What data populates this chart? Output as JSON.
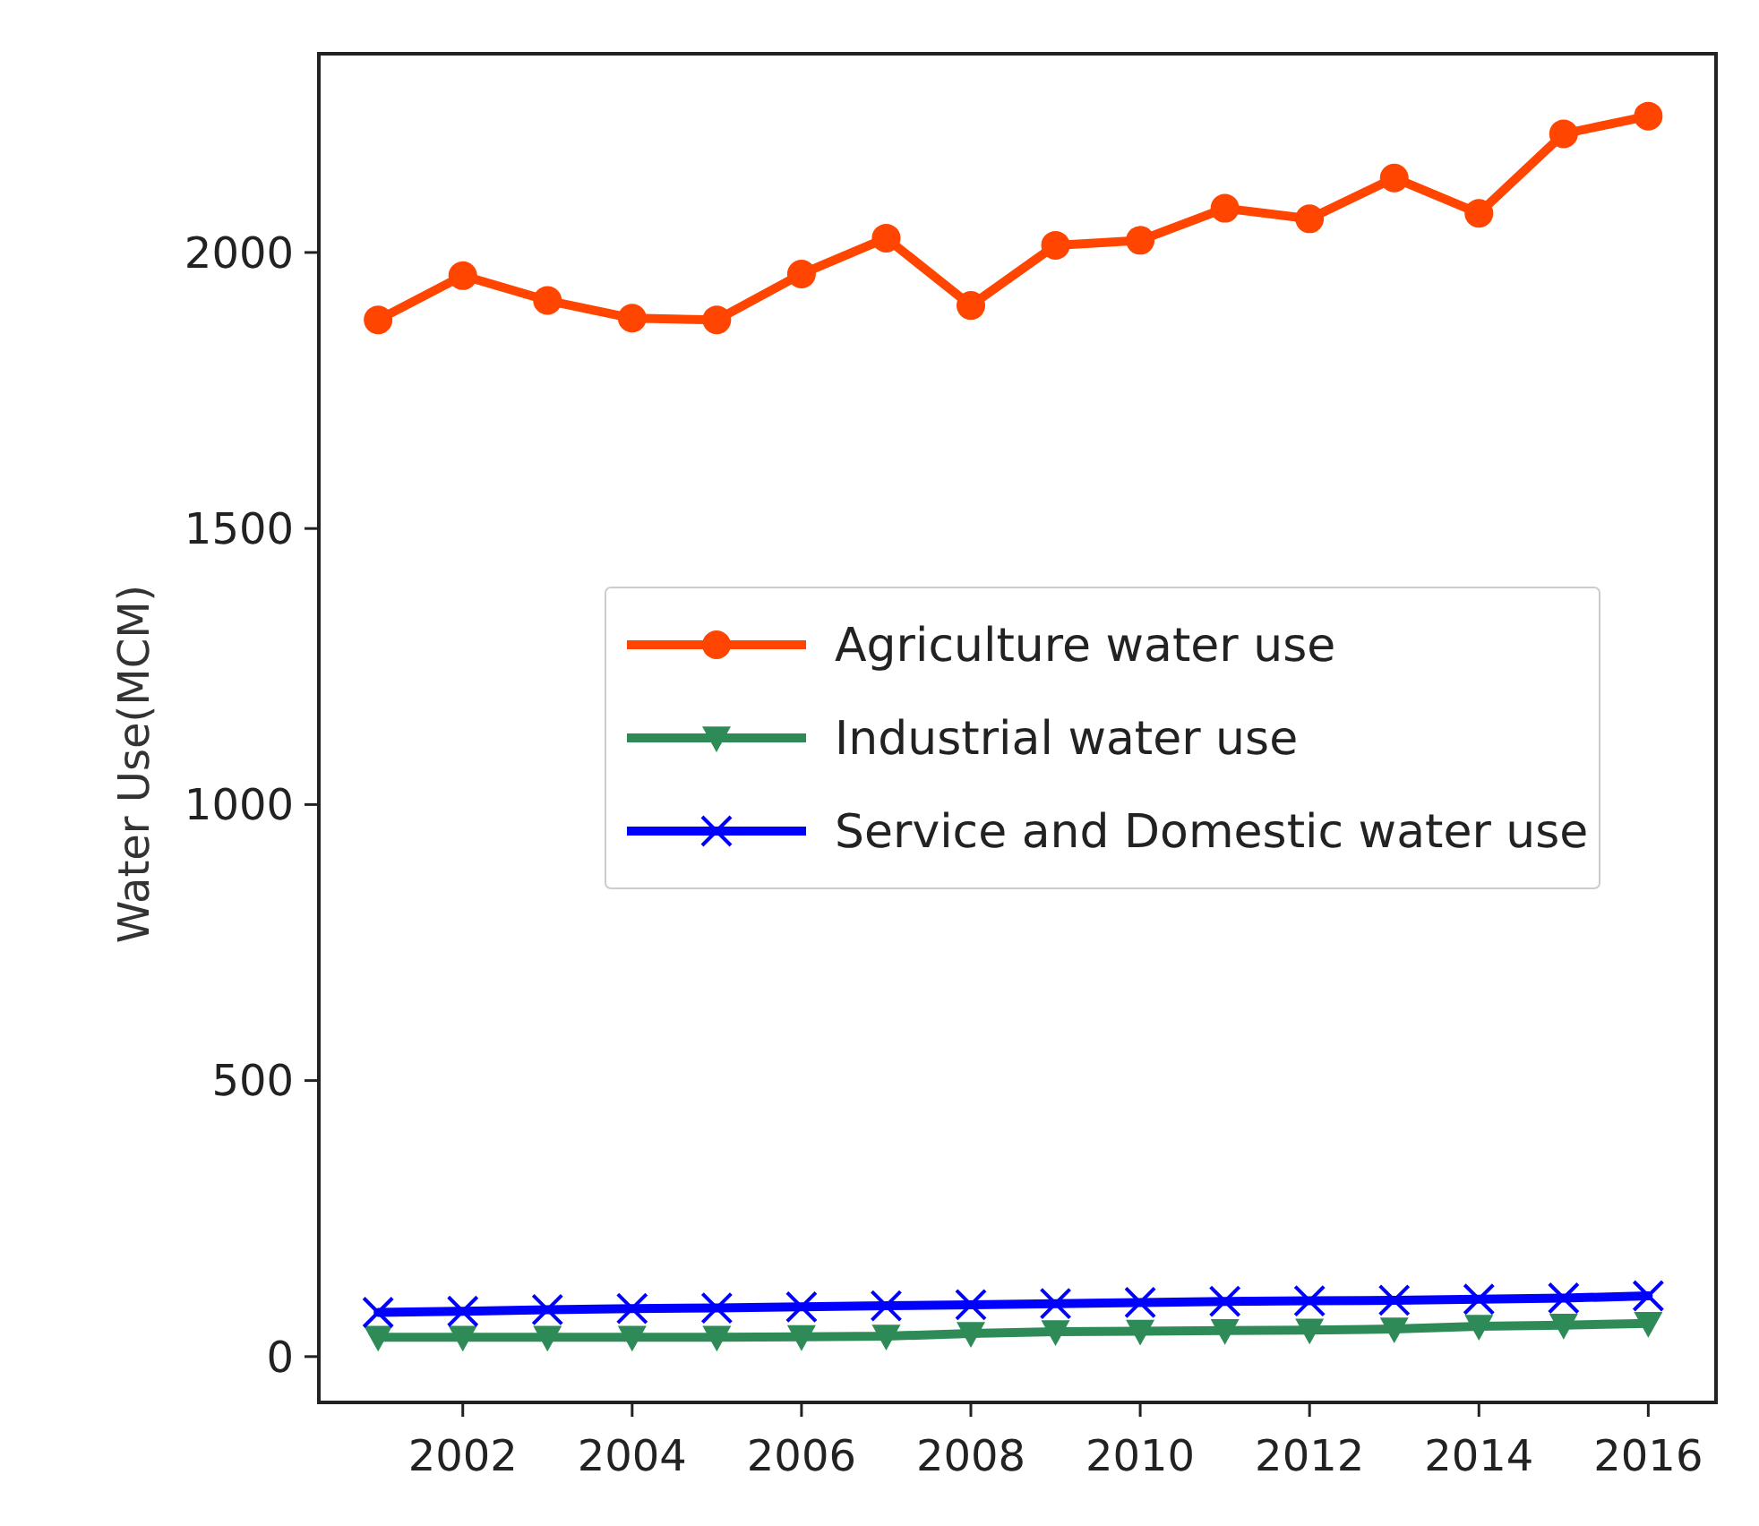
{
  "chart_data": {
    "type": "line",
    "ylabel": "Water Use(MCM)",
    "x": [
      2001,
      2002,
      2003,
      2004,
      2005,
      2006,
      2007,
      2008,
      2009,
      2010,
      2011,
      2012,
      2013,
      2014,
      2015,
      2016
    ],
    "series": [
      {
        "name": "Agriculture water use",
        "color": "#ff4500",
        "marker": "circle",
        "values": [
          1878,
          1958,
          1913,
          1881,
          1878,
          1961,
          2026,
          1904,
          2013,
          2022,
          2080,
          2061,
          2135,
          2071,
          2215,
          2247
        ]
      },
      {
        "name": "Industrial water use",
        "color": "#2e8b57",
        "marker": "triangle",
        "values": [
          35,
          35,
          35,
          35,
          35,
          36,
          37,
          42,
          45,
          46,
          47,
          48,
          50,
          55,
          57,
          60
        ]
      },
      {
        "name": "Service and Domestic water use",
        "color": "#0000ff",
        "marker": "cross",
        "values": [
          80,
          82,
          85,
          87,
          88,
          90,
          92,
          94,
          96,
          98,
          100,
          101,
          102,
          104,
          106,
          110
        ]
      }
    ],
    "xlim": [
      2000.3,
      2016.8
    ],
    "xticks": [
      2002,
      2004,
      2006,
      2008,
      2010,
      2012,
      2014,
      2016
    ],
    "ylim": [
      -83,
      2360
    ],
    "yticks": [
      0,
      500,
      1000,
      1500,
      2000
    ],
    "grid": false,
    "legend": "center",
    "line_style": "solid"
  }
}
